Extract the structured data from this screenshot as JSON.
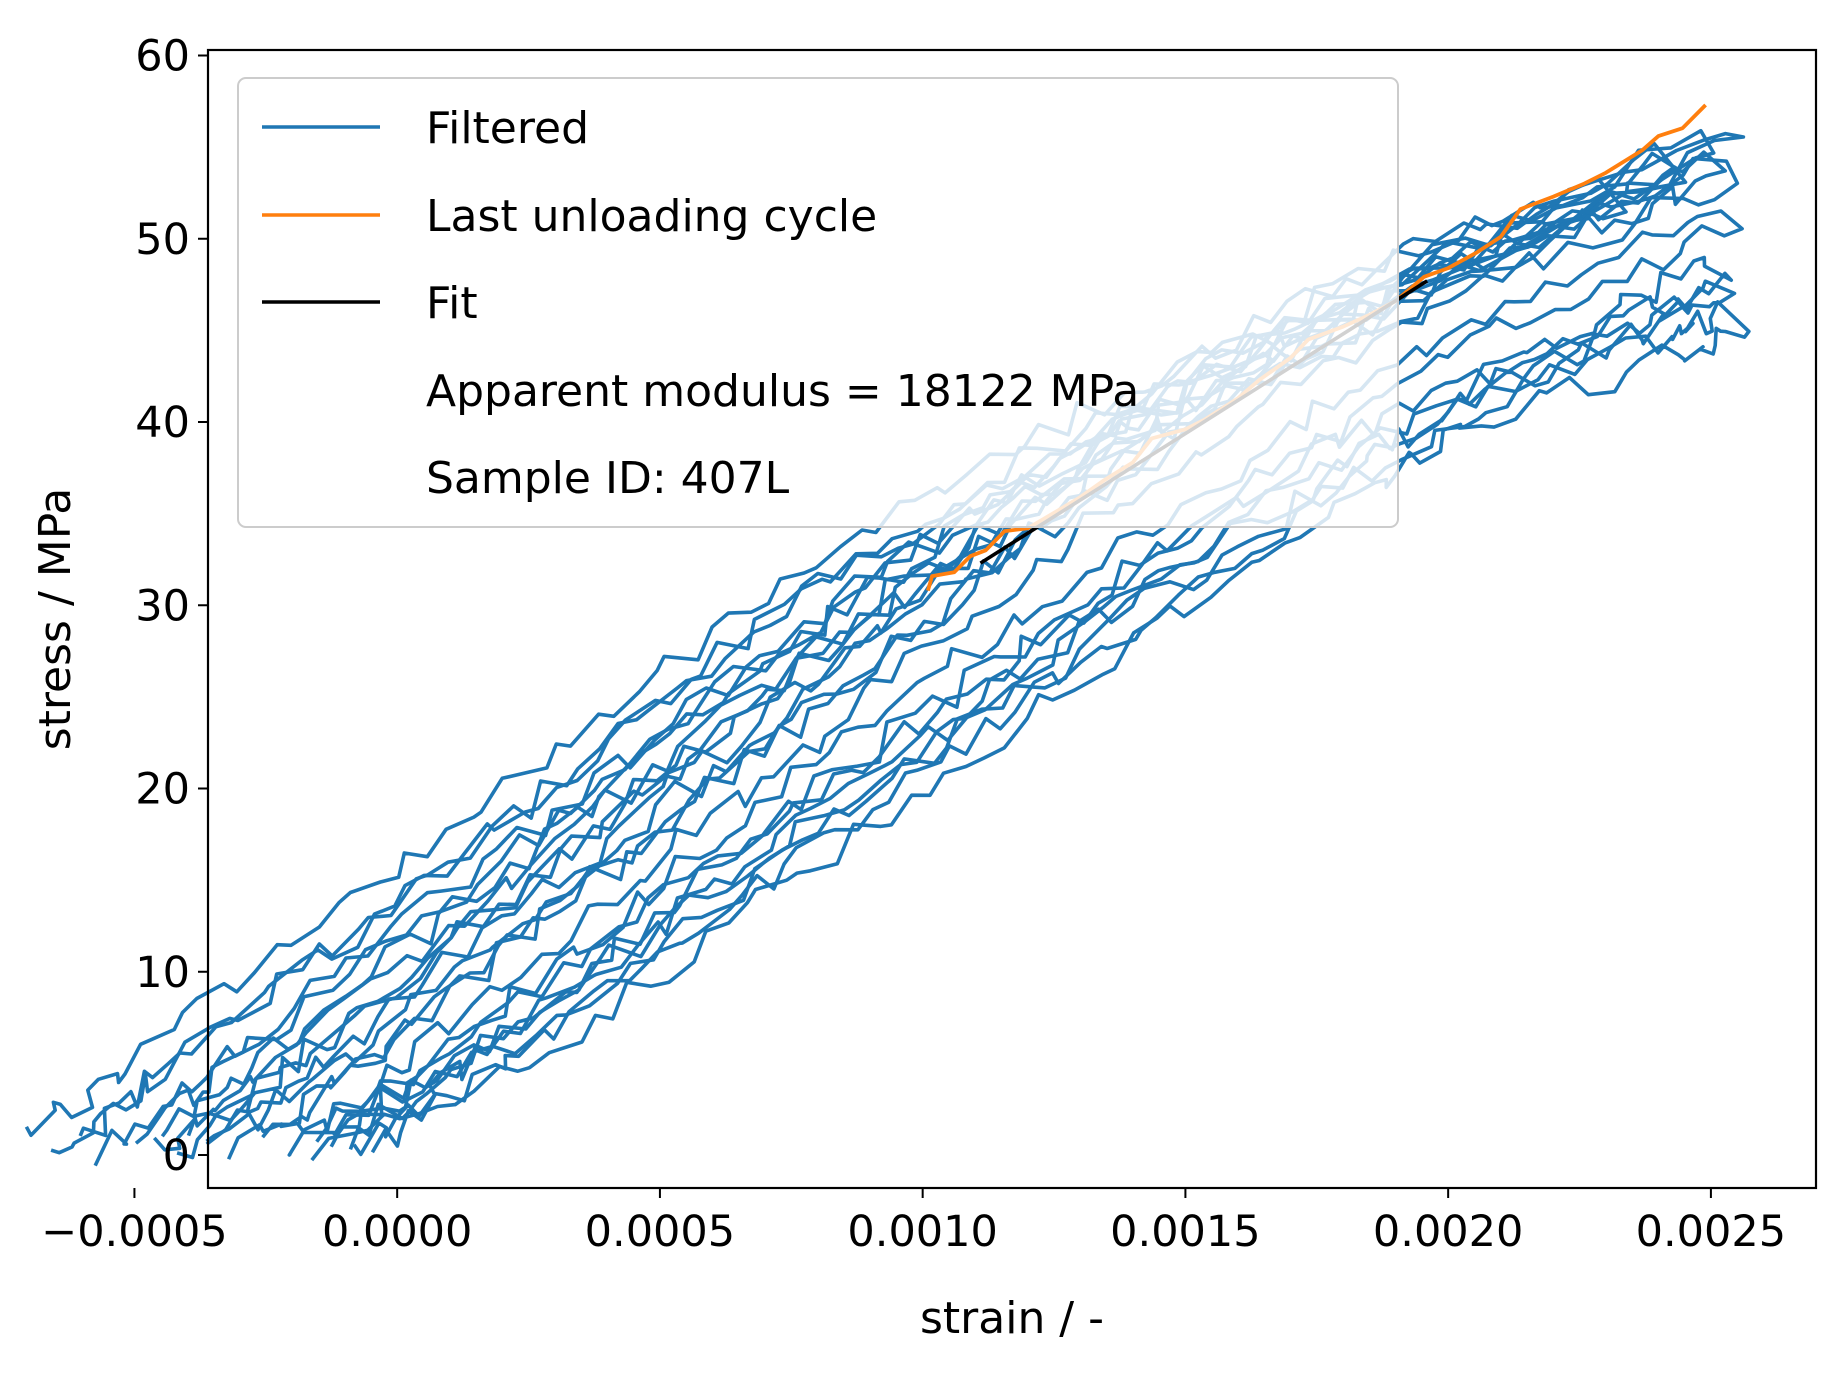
{
  "chart_data": {
    "type": "line",
    "xlabel": "strain / -",
    "ylabel": "stress / MPa",
    "xlim": [
      -0.00036,
      0.0027
    ],
    "ylim": [
      -1.8,
      60.3
    ],
    "xticks": [
      {
        "value": -0.0005,
        "label": "−0.0005"
      },
      {
        "value": 0.0,
        "label": "0.0000"
      },
      {
        "value": 0.0005,
        "label": "0.0005"
      },
      {
        "value": 0.001,
        "label": "0.0010"
      },
      {
        "value": 0.0015,
        "label": "0.0015"
      },
      {
        "value": 0.002,
        "label": "0.0020"
      },
      {
        "value": 0.0025,
        "label": "0.0025"
      }
    ],
    "yticks": [
      {
        "value": 0,
        "label": "0"
      },
      {
        "value": 10,
        "label": "10"
      },
      {
        "value": 20,
        "label": "20"
      },
      {
        "value": 30,
        "label": "30"
      },
      {
        "value": 40,
        "label": "40"
      },
      {
        "value": 50,
        "label": "50"
      },
      {
        "value": 60,
        "label": "60"
      }
    ],
    "grid": false,
    "legend_position": "top-left",
    "legend": {
      "entries": [
        {
          "label": "Filtered",
          "color": "#1f77b4"
        },
        {
          "label": "Last unloading cycle",
          "color": "#ff7f0e"
        },
        {
          "label": "Fit",
          "color": "#000000"
        }
      ],
      "notes": [
        "Apparent modulus = 18122 MPa",
        "Sample ID: 407L"
      ]
    },
    "series": [
      {
        "name": "Filtered",
        "color": "#1f77b4",
        "cycles": [
          {
            "x": [
              -0.0002,
              0.0002,
              0.0006,
              0.001,
              0.0014,
              0.0018,
              0.002,
              0.0024,
              0.00252
            ],
            "y": [
              1.0,
              5.5,
              13.5,
              21.5,
              29.5,
              37.0,
              40.5,
              44.5,
              45.8
            ]
          },
          {
            "x": [
              -0.00016,
              0.0001,
              0.0005,
              0.0009,
              0.0013,
              0.0017,
              0.002,
              0.0023,
              0.0025
            ],
            "y": [
              1.2,
              6.0,
              14.0,
              22.0,
              30.0,
              37.5,
              42.0,
              45.5,
              47.3
            ]
          },
          {
            "x": [
              -0.0001,
              0.0002,
              0.0006,
              0.001,
              0.0014,
              0.0018,
              0.0022,
              0.0025
            ],
            "y": [
              1.0,
              6.5,
              14.5,
              22.5,
              30.5,
              38.0,
              44.5,
              49.0
            ]
          },
          {
            "x": [
              -0.00012,
              0.0001,
              0.0005,
              0.0009,
              0.0013,
              0.0017,
              0.0021,
              0.00252
            ],
            "y": [
              1.0,
              6.0,
              14.8,
              23.5,
              31.5,
              39.5,
              46.5,
              51.8
            ]
          },
          {
            "x": [
              -0.00025,
              0.0,
              0.0004,
              0.0008,
              0.0012,
              0.0016,
              0.002,
              0.00252
            ],
            "y": [
              0.9,
              6.5,
              15.5,
              24.5,
              33.5,
              41.5,
              48.0,
              54.2
            ]
          },
          {
            "x": [
              -0.00035,
              -0.0001,
              0.0003,
              0.0007,
              0.0011,
              0.0015,
              0.0019,
              0.00252
            ],
            "y": [
              1.0,
              6.0,
              15.0,
              24.0,
              33.0,
              41.0,
              47.0,
              56.3
            ]
          },
          {
            "x": [
              -0.0004,
              -0.0001,
              0.0003,
              0.0007,
              0.0011,
              0.0014,
              0.0018,
              0.00248
            ],
            "y": [
              1.1,
              7.0,
              16.0,
              25.0,
              33.5,
              40.0,
              46.5,
              55.5
            ]
          },
          {
            "x": [
              -0.00045,
              -0.0002,
              0.0002,
              0.0006,
              0.001,
              0.0014,
              0.0018,
              0.0024
            ],
            "y": [
              1.0,
              6.5,
              15.5,
              24.5,
              33.0,
              40.5,
              47.0,
              54.5
            ]
          },
          {
            "x": [
              -0.0005,
              -0.0003,
              0.0001,
              0.0005,
              0.0009,
              0.0013,
              0.0017,
              0.0022,
              0.00248
            ],
            "y": [
              1.0,
              5.5,
              14.0,
              23.0,
              31.5,
              38.5,
              45.0,
              51.0,
              54.0
            ]
          },
          {
            "x": [
              -0.0006,
              -0.0004,
              0.0,
              0.0004,
              0.0008,
              0.0012,
              0.0016,
              0.002,
              0.0024
            ],
            "y": [
              1.0,
              5.5,
              14.0,
              22.5,
              31.0,
              38.0,
              44.5,
              50.0,
              54.0
            ]
          },
          {
            "x": [
              -0.0007,
              -0.0005,
              -0.0001,
              0.0003,
              0.0007,
              0.0011,
              0.0015,
              0.0019,
              0.0023
            ],
            "y": [
              1.1,
              5.0,
              13.5,
              22.0,
              30.5,
              37.5,
              43.5,
              49.0,
              53.0
            ]
          }
        ]
      },
      {
        "name": "Last unloading cycle",
        "color": "#ff7f0e",
        "x": [
          0.00101,
          0.00106,
          0.00112,
          0.0012,
          0.0013,
          0.0014,
          0.0015,
          0.0016,
          0.0017,
          0.0018,
          0.0019,
          0.002,
          0.0021,
          0.0022,
          0.0023,
          0.0024,
          0.00249
        ],
        "y": [
          30.8,
          31.8,
          33.0,
          34.2,
          35.9,
          37.8,
          39.6,
          41.3,
          43.5,
          45.2,
          46.6,
          48.4,
          50.1,
          52.3,
          53.6,
          55.6,
          57.3
        ]
      },
      {
        "name": "Fit",
        "color": "#000000",
        "x": [
          0.00111,
          0.00196
        ],
        "y": [
          32.3,
          47.7
        ]
      }
    ]
  }
}
